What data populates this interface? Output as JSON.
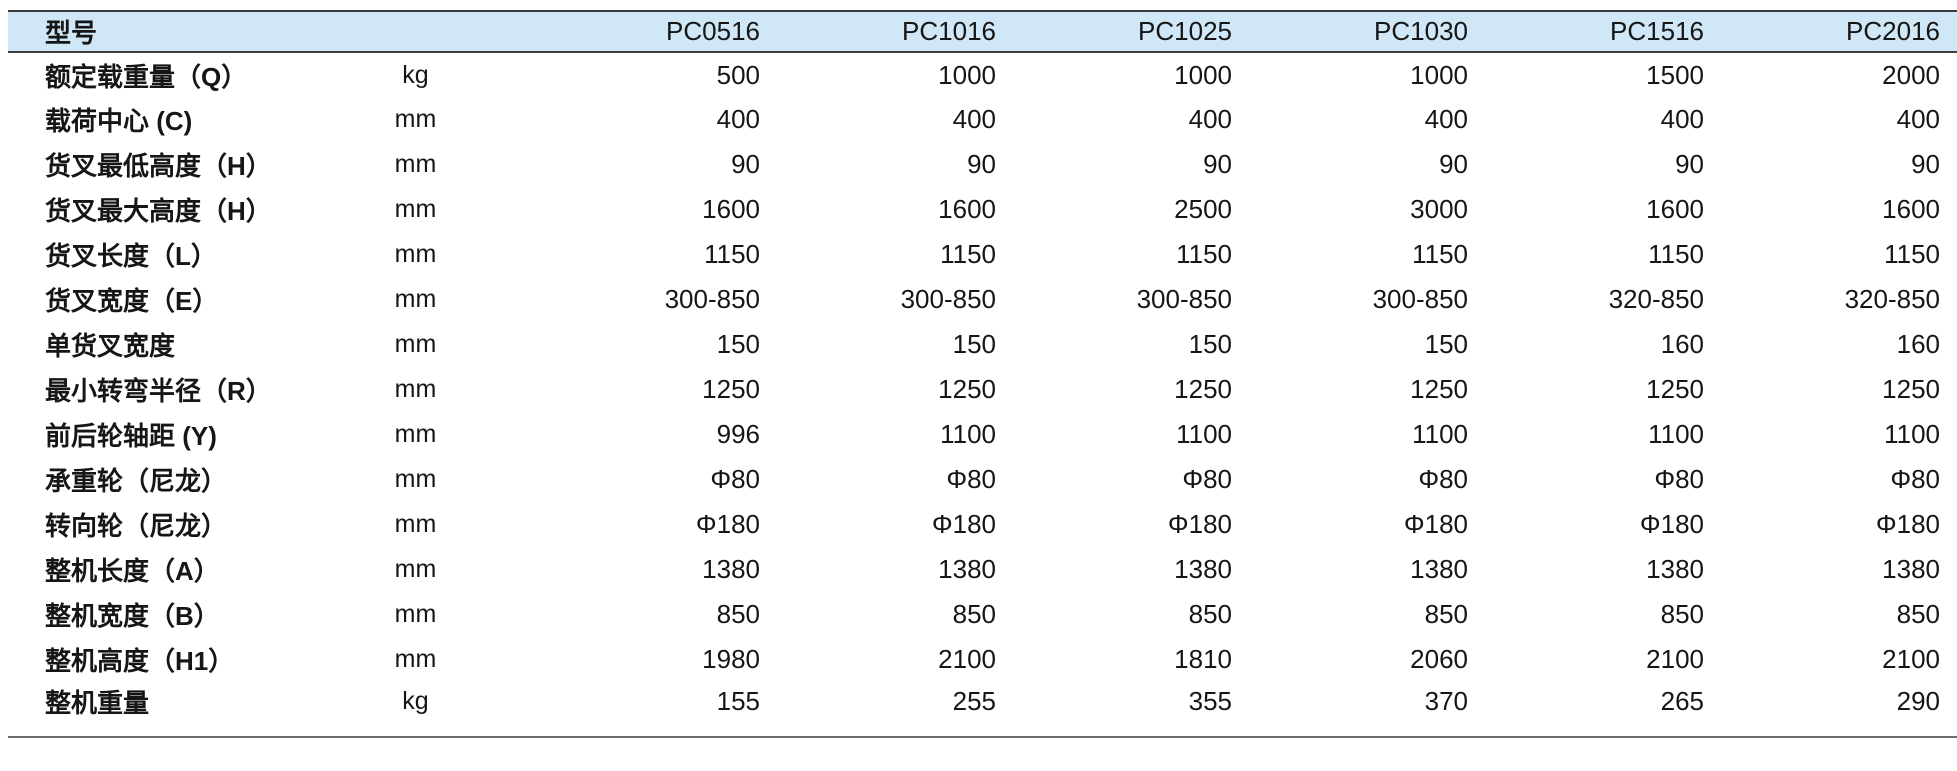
{
  "colors": {
    "header_bg": "#cfe7f6",
    "header_border": "#3c3c3c",
    "bottom_border": "#6e6e6e",
    "text": "#161616"
  },
  "table": {
    "header": {
      "model_label": "型号",
      "unit_spacer": "",
      "models": [
        "PC0516",
        "PC1016",
        "PC1025",
        "PC1030",
        "PC1516",
        "PC2016"
      ]
    },
    "rows": [
      {
        "label": "额定载重量（Q）",
        "unit": "kg",
        "values": [
          "500",
          "1000",
          "1000",
          "1000",
          "1500",
          "2000"
        ]
      },
      {
        "label": "载荷中心 (C)",
        "unit": "mm",
        "values": [
          "400",
          "400",
          "400",
          "400",
          "400",
          "400"
        ]
      },
      {
        "label": "货叉最低高度（H）",
        "unit": "mm",
        "values": [
          "90",
          "90",
          "90",
          "90",
          "90",
          "90"
        ]
      },
      {
        "label": "货叉最大高度（H）",
        "unit": "mm",
        "values": [
          "1600",
          "1600",
          "2500",
          "3000",
          "1600",
          "1600"
        ]
      },
      {
        "label": "货叉长度（L）",
        "unit": "mm",
        "values": [
          "1150",
          "1150",
          "1150",
          "1150",
          "1150",
          "1150"
        ]
      },
      {
        "label": "货叉宽度（E）",
        "unit": "mm",
        "values": [
          "300-850",
          "300-850",
          "300-850",
          "300-850",
          "320-850",
          "320-850"
        ]
      },
      {
        "label": "单货叉宽度",
        "unit": "mm",
        "values": [
          "150",
          "150",
          "150",
          "150",
          "160",
          "160"
        ]
      },
      {
        "label": "最小转弯半径（R）",
        "unit": "mm",
        "values": [
          "1250",
          "1250",
          "1250",
          "1250",
          "1250",
          "1250"
        ]
      },
      {
        "label": "前后轮轴距 (Y)",
        "unit": "mm",
        "values": [
          "996",
          "1100",
          "1100",
          "1100",
          "1100",
          "1100"
        ]
      },
      {
        "label": "承重轮（尼龙）",
        "unit": "mm",
        "values": [
          "Φ80",
          "Φ80",
          "Φ80",
          "Φ80",
          "Φ80",
          "Φ80"
        ]
      },
      {
        "label": "转向轮（尼龙）",
        "unit": "mm",
        "values": [
          "Φ180",
          "Φ180",
          "Φ180",
          "Φ180",
          "Φ180",
          "Φ180"
        ]
      },
      {
        "label": "整机长度（A）",
        "unit": "mm",
        "values": [
          "1380",
          "1380",
          "1380",
          "1380",
          "1380",
          "1380"
        ]
      },
      {
        "label": "整机宽度（B）",
        "unit": "mm",
        "values": [
          "850",
          "850",
          "850",
          "850",
          "850",
          "850"
        ]
      },
      {
        "label": "整机高度（H1）",
        "unit": "mm",
        "values": [
          "1980",
          "2100",
          "1810",
          "2060",
          "2100",
          "2100"
        ]
      },
      {
        "label": "整机重量",
        "unit": "kg",
        "values": [
          "155",
          "255",
          "355",
          "370",
          "265",
          "290"
        ]
      }
    ]
  }
}
